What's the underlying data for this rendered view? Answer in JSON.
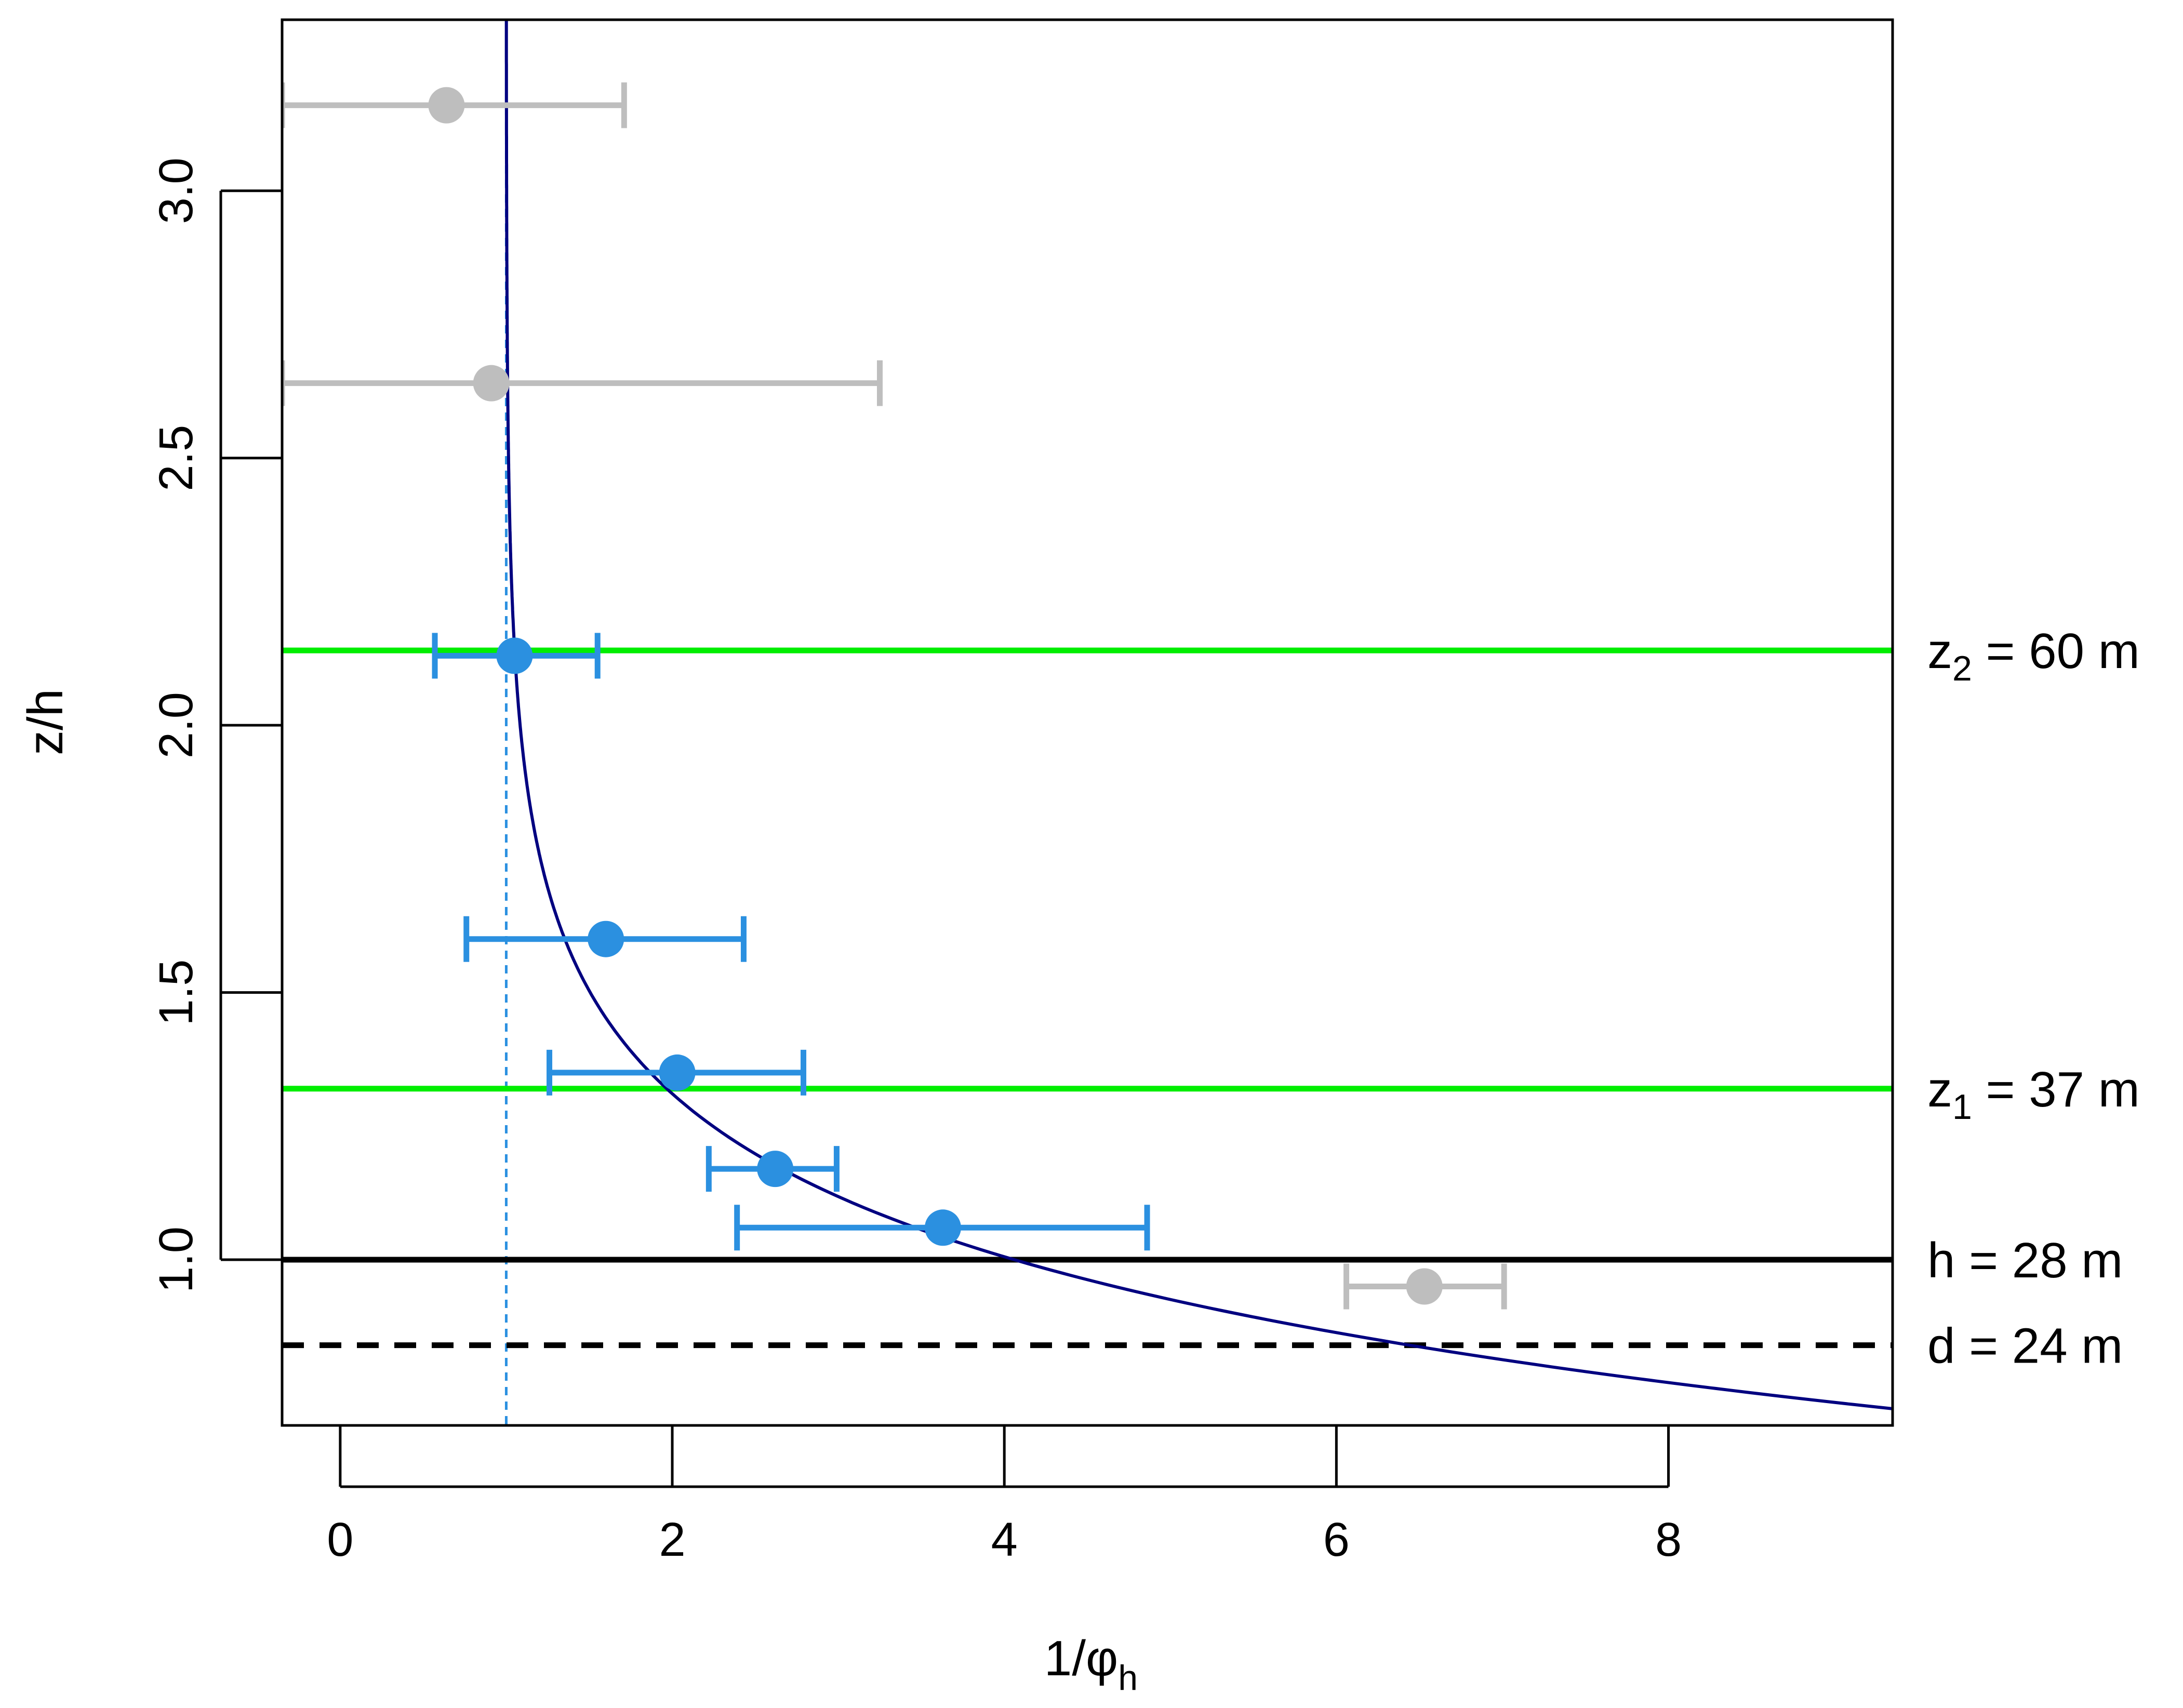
{
  "chart_data": {
    "type": "scatter",
    "xlabel": "1/φh",
    "ylabel": "z/h",
    "xlim": [
      -0.35,
      9.35
    ],
    "ylim": [
      0.69,
      3.32
    ],
    "xticks": [
      0,
      2,
      4,
      6,
      8
    ],
    "xtick_labels": [
      "0",
      "2",
      "4",
      "6",
      "8"
    ],
    "yticks": [
      1.0,
      1.5,
      2.0,
      2.5,
      3.0
    ],
    "ytick_labels": [
      "1.0",
      "1.5",
      "2.0",
      "2.5",
      "3.0"
    ],
    "grid": false,
    "colors": {
      "blue_points": "#2b90e0",
      "gray_points": "#bebebe",
      "curve": "#000080",
      "green_lines": "#00ee00",
      "reference_line": "#2b90e0",
      "black_lines": "#000000"
    },
    "series": [
      {
        "points": [
          {
            "x": 1.05,
            "y": 2.13,
            "xerr_low": 0.57,
            "xerr_high": 1.55
          },
          {
            "x": 1.6,
            "y": 1.6,
            "xerr_low": 0.76,
            "xerr_high": 2.43
          },
          {
            "x": 2.03,
            "y": 1.35,
            "xerr_low": 1.26,
            "xerr_high": 2.79
          },
          {
            "x": 2.62,
            "y": 1.17,
            "xerr_low": 2.22,
            "xerr_high": 2.99
          },
          {
            "x": 3.63,
            "y": 1.06,
            "xerr_low": 2.39,
            "xerr_high": 4.86
          }
        ]
      },
      {
        "points": [
          {
            "x": 0.64,
            "y": 3.16,
            "xerr_low": -0.35,
            "xerr_high": 1.71
          },
          {
            "x": 0.91,
            "y": 2.64,
            "xerr_low": -0.35,
            "xerr_high": 3.25
          },
          {
            "x": 6.53,
            "y": 0.95,
            "xerr_low": 6.06,
            "xerr_high": 7.01
          }
        ]
      }
    ],
    "curve": {
      "form": "1/phi_h = 1 + a * exp(-b * (z/h - 1))",
      "a": 3.06,
      "b": 3.6
    },
    "vertical_reference": {
      "x": 1.0,
      "style": "dashed"
    },
    "horizontal_lines": [
      {
        "y": 2.14,
        "label_main": "z",
        "label_sub": "2",
        "label_rest": " = 60 m",
        "style": "solid",
        "color": "#00ee00"
      },
      {
        "y": 1.32,
        "label_main": "z",
        "label_sub": "1",
        "label_rest": " = 37 m",
        "style": "solid",
        "color": "#00ee00"
      },
      {
        "y": 1.0,
        "label_main": "h = 28 m",
        "label_sub": "",
        "label_rest": "",
        "style": "solid",
        "color": "#000000"
      },
      {
        "y": 0.84,
        "label_main": "d = 24 m",
        "label_sub": "",
        "label_rest": "",
        "style": "dashed",
        "color": "#000000"
      }
    ],
    "axis_labels": {
      "x_main": "1/φ",
      "x_sub": "h",
      "y": "z/h"
    }
  }
}
